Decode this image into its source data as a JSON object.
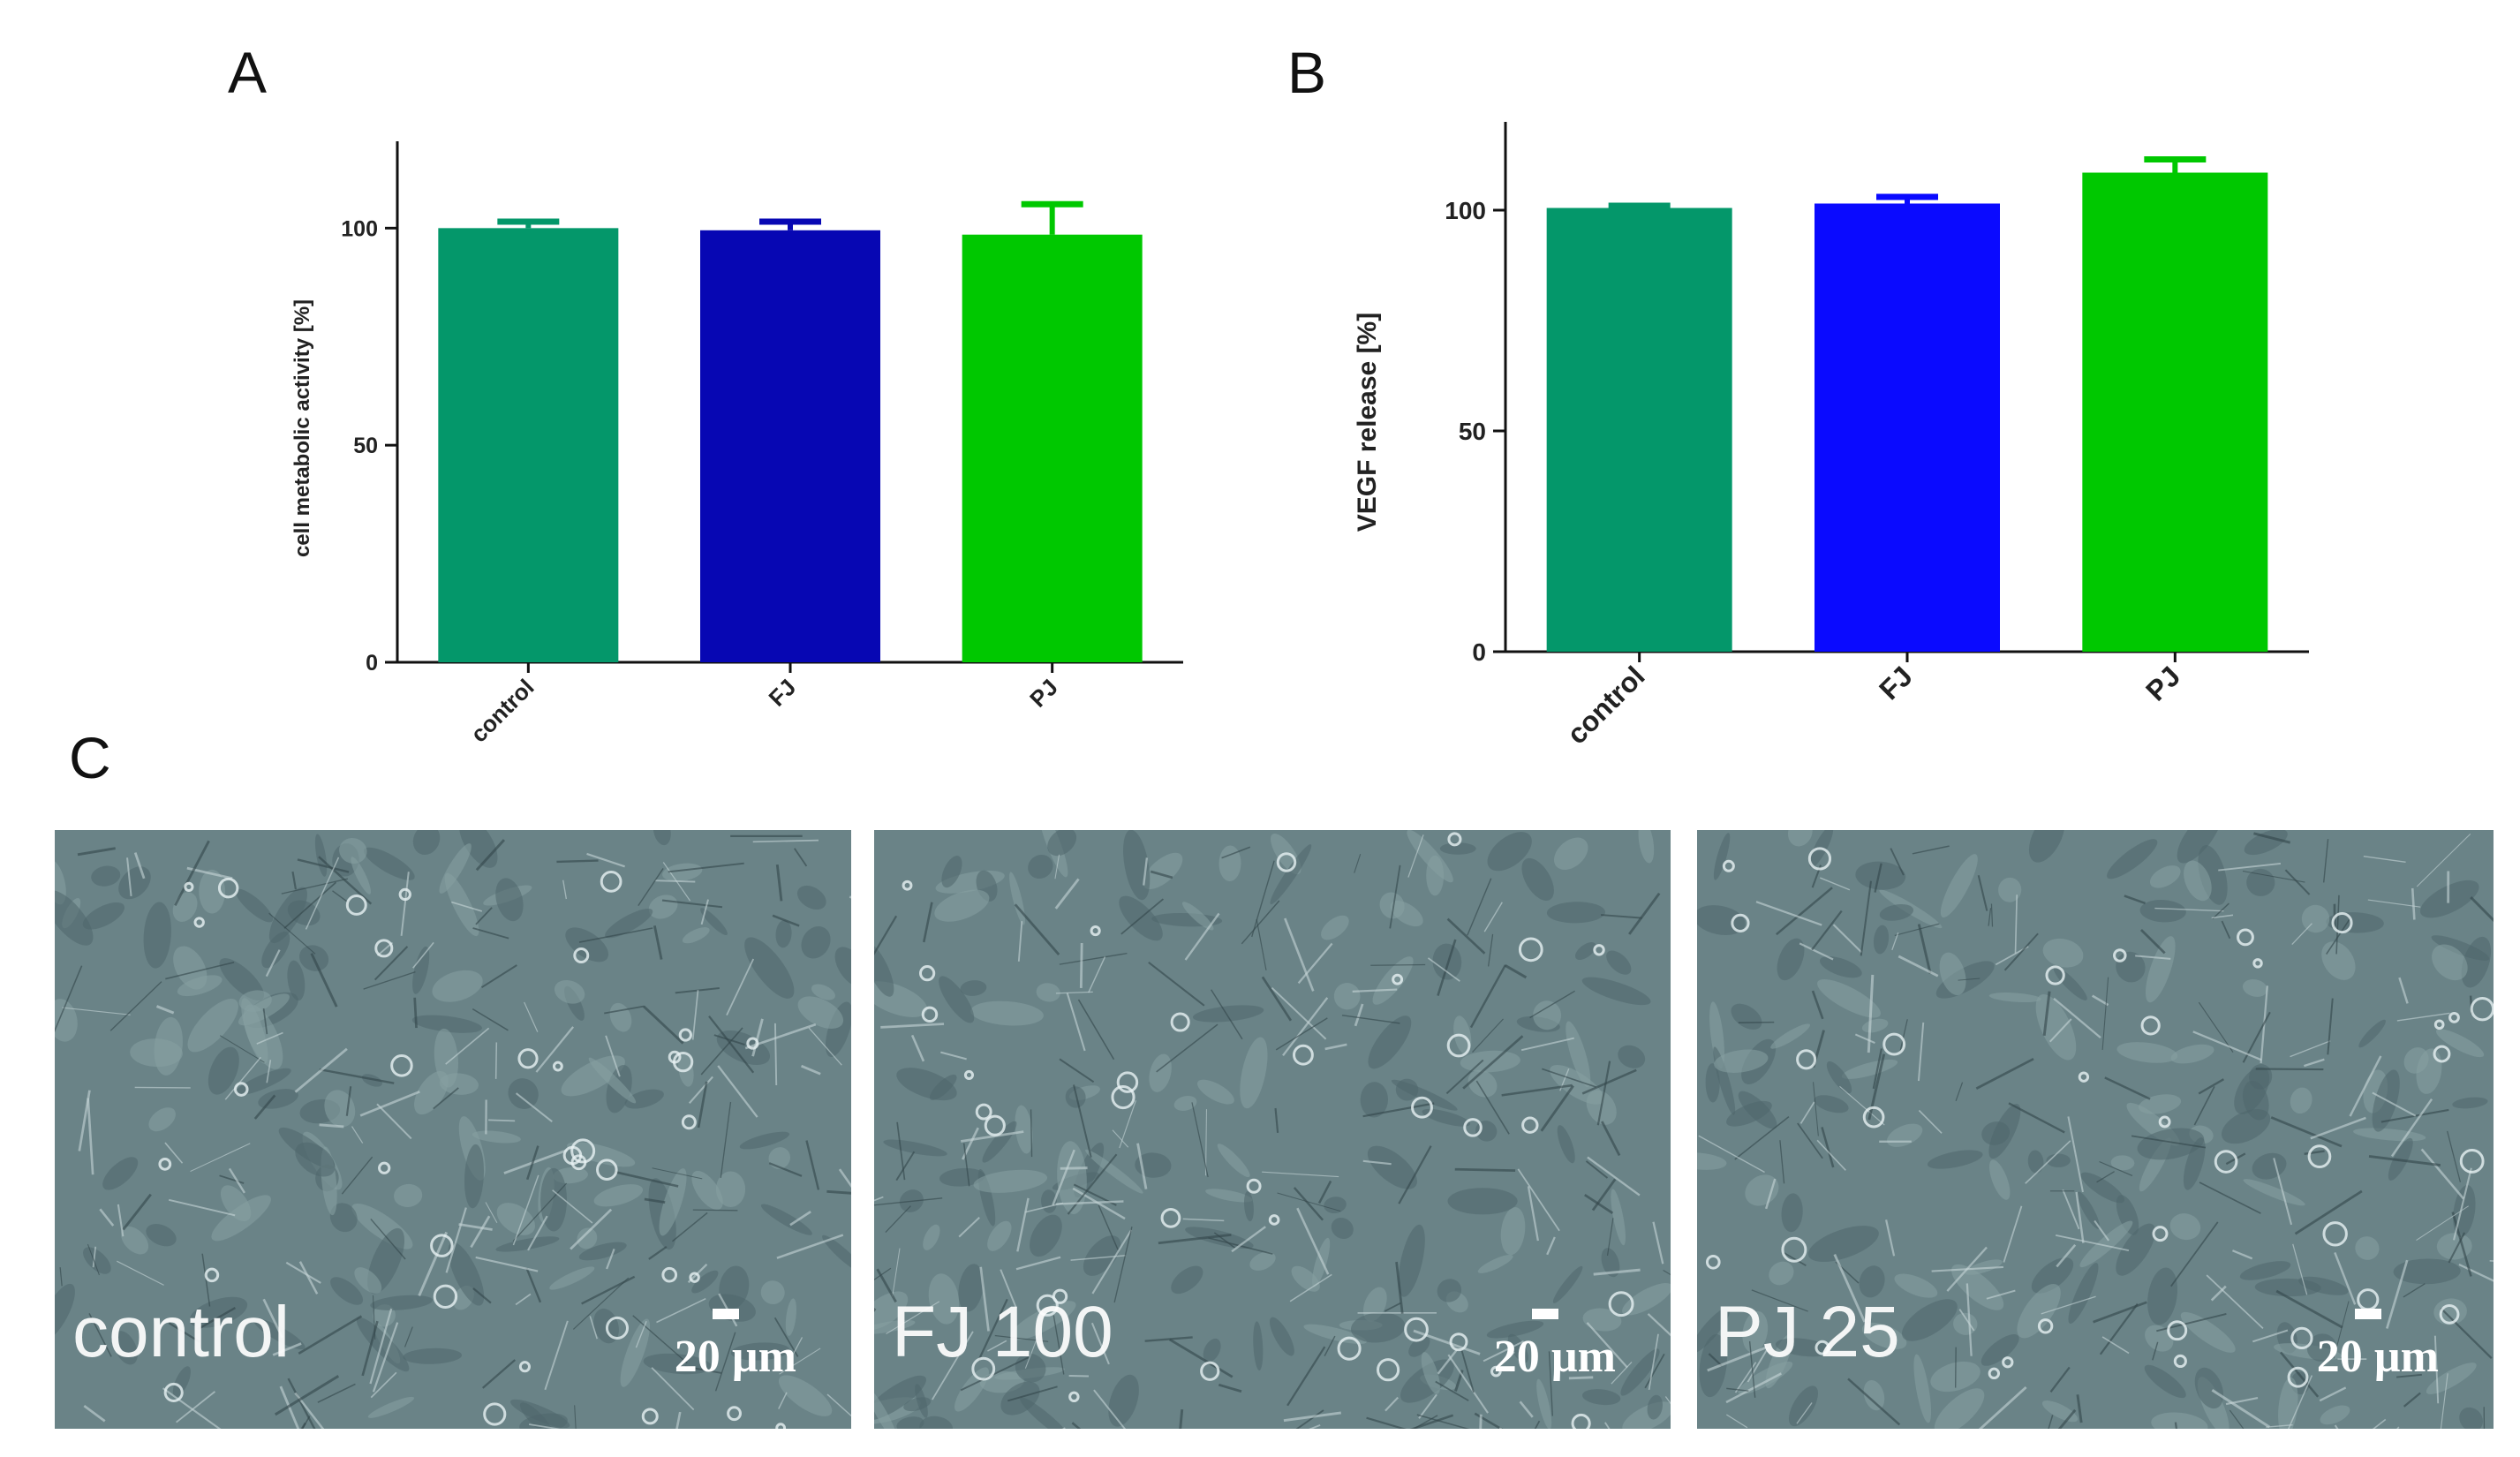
{
  "panels": {
    "A": "A",
    "B": "B",
    "C": "C"
  },
  "chart_data": [
    {
      "type": "bar",
      "panel": "A",
      "categories": [
        "control",
        "FJ",
        "PJ"
      ],
      "values": [
        100,
        99.5,
        98.5
      ],
      "errors": [
        1.5,
        2,
        7
      ],
      "colors": [
        "#04976a",
        "#0707b3",
        "#00c800"
      ],
      "ylabel": "cell metabolic activity [%]",
      "ylim": [
        0,
        120
      ],
      "yticks": [
        0,
        50,
        100
      ]
    },
    {
      "type": "bar",
      "panel": "B",
      "categories": [
        "control",
        "FJ",
        "PJ"
      ],
      "values": [
        100.5,
        101.5,
        108.5
      ],
      "errors": [
        0.5,
        1.5,
        3
      ],
      "colors": [
        "#04976a",
        "#0a0aff",
        "#00c800"
      ],
      "ylabel": "VEGF release [%]",
      "ylim": [
        0,
        120
      ],
      "yticks": [
        0,
        50,
        100
      ]
    }
  ],
  "micrographs": [
    {
      "label": "control",
      "scale_text": "20 µm"
    },
    {
      "label": "FJ 100",
      "scale_text": "20 µm"
    },
    {
      "label": "PJ 25",
      "scale_text": "20 µm"
    }
  ]
}
